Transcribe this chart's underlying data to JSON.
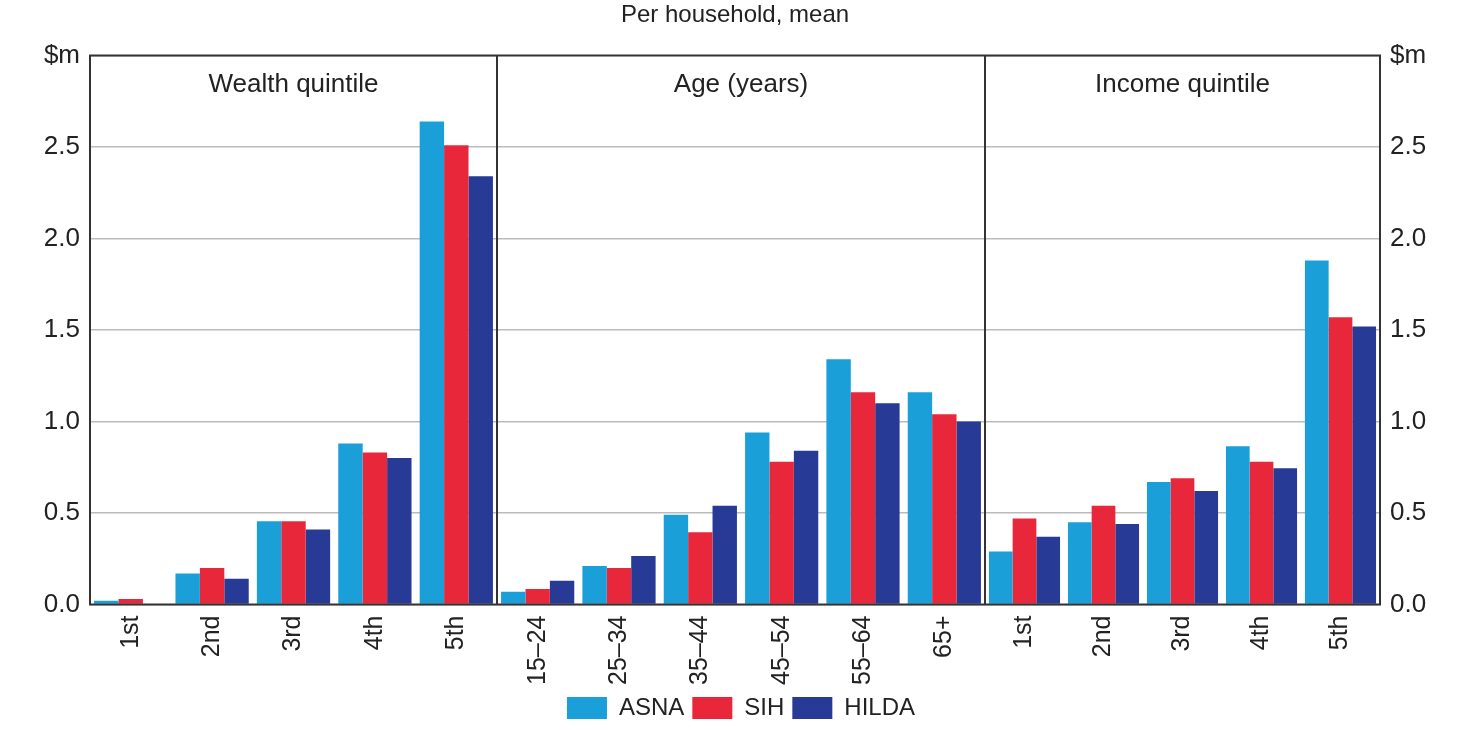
{
  "chart_data": [
    {
      "type": "bar",
      "title": "Wealth quintile",
      "categories": [
        "1st",
        "2nd",
        "3rd",
        "4th",
        "5th"
      ],
      "series": [
        {
          "color": "#1a9fd9",
          "values": [
            0.02,
            0.17,
            0.455,
            0.88,
            2.64
          ]
        },
        {
          "color": "#e8283a",
          "values": [
            0.03,
            0.2,
            0.455,
            0.83,
            2.51
          ]
        },
        {
          "color": "#263a96",
          "values": [
            0,
            0.14,
            0.41,
            0.8,
            2.34
          ]
        }
      ],
      "ylim": [
        0,
        3
      ],
      "yticks": [
        {
          "value": 0,
          "label": "0.0"
        },
        0.5,
        {
          "value": 1,
          "label": "1.0"
        },
        1.5,
        {
          "value": 2,
          "label": "2.0"
        },
        2.5,
        {
          "value": 3,
          "label": "$m"
        }
      ],
      "grid": "y",
      "legend": false
    },
    {
      "type": "bar",
      "title": "Age (years)",
      "annotations": [
        "Per household, mean"
      ],
      "categories": [
        "15–24",
        "25–34",
        "35–44",
        "45–54",
        "55–64",
        "65+"
      ],
      "series": [
        {
          "name": "ASNA",
          "color": "#1a9fd9",
          "values": [
            0.07,
            0.21,
            0.49,
            0.94,
            1.34,
            1.16
          ]
        },
        {
          "name": "SIH",
          "color": "#e8283a",
          "values": [
            0.085,
            0.2,
            0.395,
            0.78,
            1.16,
            1.04
          ]
        },
        {
          "name": "HILDA",
          "color": "#263a96",
          "values": [
            0.13,
            0.265,
            0.54,
            0.84,
            1.1,
            1.0
          ]
        }
      ],
      "ylim": [
        0,
        3
      ],
      "yticks": [
        0,
        0.5,
        1,
        1.5,
        2,
        2.5
      ],
      "grid": "y",
      "legend": "bottom",
      "tick_labels": "x"
    },
    {
      "type": "bar",
      "title": "Income quintile",
      "categories": [
        "1st",
        "2nd",
        "3rd",
        "4th",
        "5th"
      ],
      "series": [
        {
          "color": "#1a9fd9",
          "values": [
            0.29,
            0.45,
            0.67,
            0.865,
            1.88
          ]
        },
        {
          "color": "#e8283a",
          "values": [
            0.47,
            0.54,
            0.69,
            0.78,
            1.57
          ]
        },
        {
          "color": "#263a96",
          "values": [
            0.37,
            0.44,
            0.62,
            0.745,
            1.52
          ]
        }
      ],
      "ylim": [
        0,
        3
      ],
      "yticks": [
        {
          "value": 0,
          "label": "0.0"
        },
        0.5,
        {
          "value": 1,
          "label": "1.0"
        },
        1.5,
        {
          "value": 2,
          "label": "2.0"
        },
        2.5,
        {
          "value": 3,
          "label": "$m"
        }
      ],
      "grid": "y",
      "legend": false
    }
  ]
}
